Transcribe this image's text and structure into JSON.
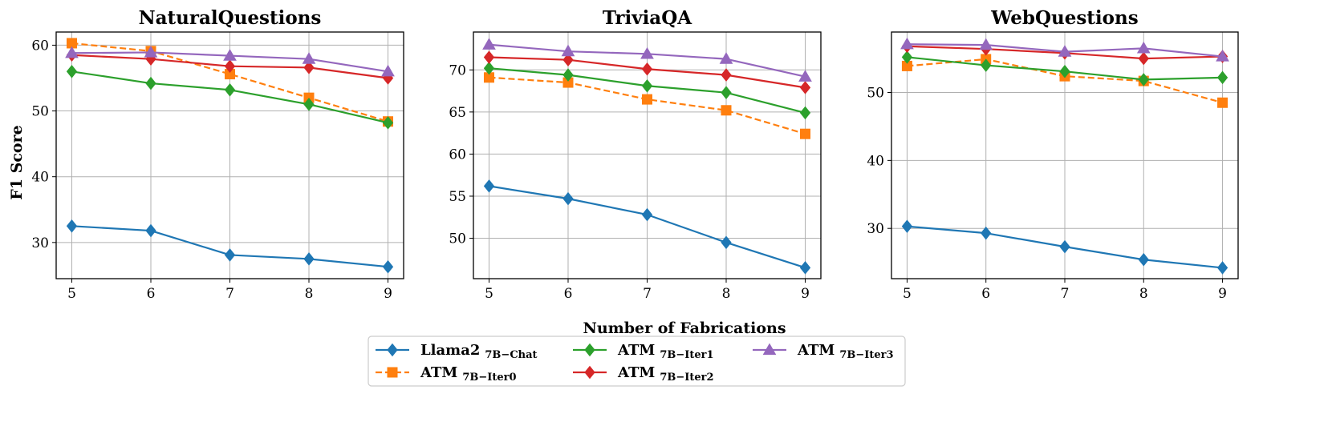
{
  "figure": {
    "xlabel": "Number of Fabrications",
    "ylabel": "F1 Score"
  },
  "legend": {
    "entries": [
      {
        "base": "Llama2",
        "sub": "7B−Chat",
        "color": "#1f77b4",
        "marker": "diamond",
        "dashed": false
      },
      {
        "base": "ATM",
        "sub": "7B−Iter0",
        "color": "#ff7f0e",
        "marker": "square",
        "dashed": true
      },
      {
        "base": "ATM",
        "sub": "7B−Iter1",
        "color": "#2ca02c",
        "marker": "diamond",
        "dashed": false
      },
      {
        "base": "ATM",
        "sub": "7B−Iter2",
        "color": "#d62728",
        "marker": "diamond",
        "dashed": false
      },
      {
        "base": "ATM",
        "sub": "7B−Iter3",
        "color": "#9467bd",
        "marker": "triangle",
        "dashed": false
      }
    ]
  },
  "chart_data": [
    {
      "type": "line",
      "title": "NaturalQuestions",
      "x": [
        5,
        6,
        7,
        8,
        9
      ],
      "ylim": [
        24.5,
        62.0
      ],
      "yticks": [
        30,
        40,
        50,
        60
      ],
      "grid": true,
      "series": [
        {
          "name": "Llama2 7B−Chat",
          "values": [
            32.5,
            31.8,
            28.1,
            27.5,
            26.3
          ]
        },
        {
          "name": "ATM 7B−Iter0",
          "values": [
            60.3,
            59.1,
            55.6,
            52.0,
            48.4
          ]
        },
        {
          "name": "ATM 7B−Iter1",
          "values": [
            56.0,
            54.2,
            53.2,
            51.0,
            48.2
          ]
        },
        {
          "name": "ATM 7B−Iter2",
          "values": [
            58.5,
            57.9,
            56.8,
            56.6,
            55.0
          ]
        },
        {
          "name": "ATM 7B−Iter3",
          "values": [
            58.8,
            58.9,
            58.4,
            57.9,
            56.0
          ]
        }
      ]
    },
    {
      "type": "line",
      "title": "TriviaQA",
      "x": [
        5,
        6,
        7,
        8,
        9
      ],
      "ylim": [
        45.2,
        74.5
      ],
      "yticks": [
        50,
        55,
        60,
        65,
        70
      ],
      "grid": true,
      "series": [
        {
          "name": "Llama2 7B−Chat",
          "values": [
            56.2,
            54.7,
            52.8,
            49.5,
            46.5
          ]
        },
        {
          "name": "ATM 7B−Iter0",
          "values": [
            69.1,
            68.5,
            66.5,
            65.2,
            62.4
          ]
        },
        {
          "name": "ATM 7B−Iter1",
          "values": [
            70.2,
            69.4,
            68.1,
            67.3,
            64.9
          ]
        },
        {
          "name": "ATM 7B−Iter2",
          "values": [
            71.5,
            71.2,
            70.1,
            69.4,
            67.9
          ]
        },
        {
          "name": "ATM 7B−Iter3",
          "values": [
            73.0,
            72.2,
            71.9,
            71.3,
            69.2
          ]
        }
      ]
    },
    {
      "type": "line",
      "title": "WebQuestions",
      "x": [
        5,
        6,
        7,
        8,
        9
      ],
      "ylim": [
        22.6,
        58.9
      ],
      "yticks": [
        30,
        40,
        50
      ],
      "grid": true,
      "series": [
        {
          "name": "Llama2 7B−Chat",
          "values": [
            30.3,
            29.3,
            27.3,
            25.4,
            24.2
          ]
        },
        {
          "name": "ATM 7B−Iter0",
          "values": [
            53.9,
            54.9,
            52.4,
            51.7,
            48.5
          ]
        },
        {
          "name": "ATM 7B−Iter1",
          "values": [
            55.2,
            54.0,
            53.1,
            51.9,
            52.2
          ]
        },
        {
          "name": "ATM 7B−Iter2",
          "values": [
            56.8,
            56.4,
            55.8,
            55.0,
            55.3
          ]
        },
        {
          "name": "ATM 7B−Iter3",
          "values": [
            57.1,
            57.0,
            56.0,
            56.5,
            55.3
          ]
        }
      ]
    }
  ]
}
